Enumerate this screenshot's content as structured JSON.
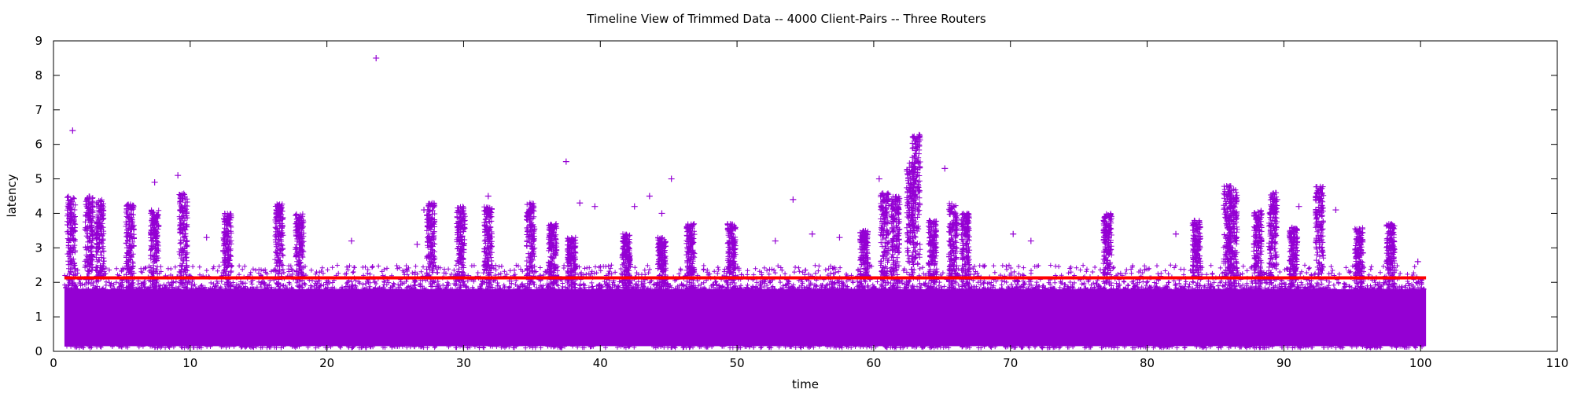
{
  "chart_data": {
    "type": "scatter",
    "title": "Timeline View of Trimmed Data -- 4000 Client-Pairs -- Three Routers",
    "xlabel": "time",
    "ylabel": "latency",
    "xlim": [
      0,
      110
    ],
    "ylim": [
      0,
      9
    ],
    "xticks": [
      0,
      10,
      20,
      30,
      40,
      50,
      60,
      70,
      80,
      90,
      100,
      110
    ],
    "yticks": [
      0,
      1,
      2,
      3,
      4,
      5,
      6,
      7,
      8,
      9
    ],
    "grid": false,
    "legend": "none",
    "series": [
      {
        "name": "latency samples",
        "marker": "+",
        "color": "#9400d3",
        "x_range": [
          0.8,
          100.4
        ],
        "dense_band": [
          0.15,
          1.8
        ],
        "outliers": [
          {
            "x": 1.4,
            "y": 6.4
          },
          {
            "x": 23.6,
            "y": 8.5
          },
          {
            "x": 37.5,
            "y": 5.5
          },
          {
            "x": 45.2,
            "y": 5.0
          },
          {
            "x": 9.1,
            "y": 5.1
          },
          {
            "x": 7.4,
            "y": 4.9
          },
          {
            "x": 62.9,
            "y": 6.2
          },
          {
            "x": 63.0,
            "y": 6.1
          },
          {
            "x": 65.2,
            "y": 5.3
          },
          {
            "x": 60.4,
            "y": 5.0
          },
          {
            "x": 54.1,
            "y": 4.4
          },
          {
            "x": 27.1,
            "y": 4.1
          },
          {
            "x": 31.8,
            "y": 4.5
          },
          {
            "x": 38.5,
            "y": 4.3
          },
          {
            "x": 43.6,
            "y": 4.5
          },
          {
            "x": 42.5,
            "y": 4.2
          },
          {
            "x": 44.5,
            "y": 4.0
          },
          {
            "x": 55.5,
            "y": 3.4
          },
          {
            "x": 57.5,
            "y": 3.3
          },
          {
            "x": 52.8,
            "y": 3.2
          },
          {
            "x": 70.2,
            "y": 3.4
          },
          {
            "x": 71.5,
            "y": 3.2
          },
          {
            "x": 82.1,
            "y": 3.4
          },
          {
            "x": 89.5,
            "y": 4.4
          },
          {
            "x": 91.1,
            "y": 4.2
          },
          {
            "x": 93.8,
            "y": 4.1
          },
          {
            "x": 99.8,
            "y": 2.6
          },
          {
            "x": 11.2,
            "y": 3.3
          },
          {
            "x": 21.8,
            "y": 3.2
          },
          {
            "x": 26.6,
            "y": 3.1
          },
          {
            "x": 39.6,
            "y": 4.2
          }
        ],
        "spikes": [
          {
            "x": 1.3,
            "y_max": 4.5
          },
          {
            "x": 2.6,
            "y_max": 4.5
          },
          {
            "x": 3.4,
            "y_max": 4.4
          },
          {
            "x": 5.6,
            "y_max": 4.3
          },
          {
            "x": 7.4,
            "y_max": 4.1
          },
          {
            "x": 9.5,
            "y_max": 4.6
          },
          {
            "x": 12.7,
            "y_max": 4.0
          },
          {
            "x": 16.5,
            "y_max": 4.3
          },
          {
            "x": 18.0,
            "y_max": 4.0
          },
          {
            "x": 27.6,
            "y_max": 4.3
          },
          {
            "x": 29.8,
            "y_max": 4.2
          },
          {
            "x": 31.8,
            "y_max": 4.2
          },
          {
            "x": 34.9,
            "y_max": 4.3
          },
          {
            "x": 36.5,
            "y_max": 3.7
          },
          {
            "x": 37.9,
            "y_max": 3.3
          },
          {
            "x": 41.9,
            "y_max": 3.4
          },
          {
            "x": 44.5,
            "y_max": 3.3
          },
          {
            "x": 46.6,
            "y_max": 3.7
          },
          {
            "x": 49.6,
            "y_max": 3.7
          },
          {
            "x": 59.3,
            "y_max": 3.5
          },
          {
            "x": 60.8,
            "y_max": 4.6
          },
          {
            "x": 61.6,
            "y_max": 4.5
          },
          {
            "x": 62.7,
            "y_max": 5.5
          },
          {
            "x": 63.1,
            "y_max": 6.3
          },
          {
            "x": 64.3,
            "y_max": 3.8
          },
          {
            "x": 65.8,
            "y_max": 4.3
          },
          {
            "x": 66.7,
            "y_max": 4.0
          },
          {
            "x": 77.1,
            "y_max": 4.0
          },
          {
            "x": 83.6,
            "y_max": 3.8
          },
          {
            "x": 85.9,
            "y_max": 4.8
          },
          {
            "x": 86.3,
            "y_max": 4.7
          },
          {
            "x": 88.1,
            "y_max": 4.1
          },
          {
            "x": 89.2,
            "y_max": 4.6
          },
          {
            "x": 90.7,
            "y_max": 3.6
          },
          {
            "x": 92.6,
            "y_max": 4.8
          },
          {
            "x": 95.5,
            "y_max": 3.6
          },
          {
            "x": 97.8,
            "y_max": 3.7
          }
        ]
      },
      {
        "name": "reference line",
        "type": "line",
        "color": "#ff0000",
        "x": [
          0.8,
          100.4
        ],
        "y": [
          2.13,
          2.13
        ]
      }
    ]
  }
}
